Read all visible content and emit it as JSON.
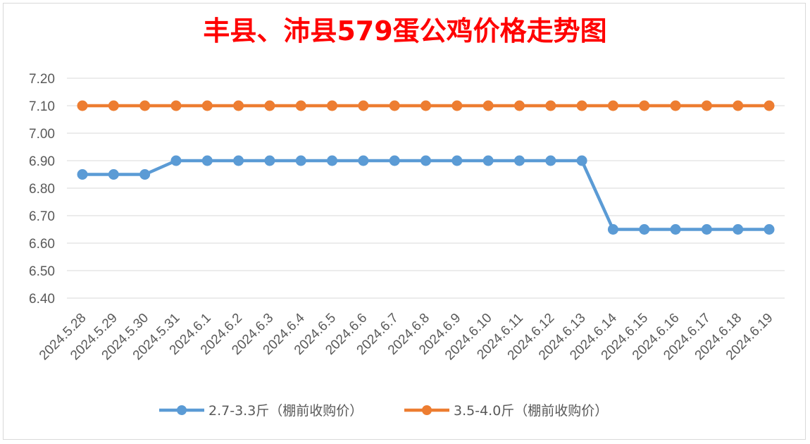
{
  "chart_data": {
    "type": "line",
    "title": "丰县、沛县579蛋公鸡价格走势图",
    "title_color": "#ff0000",
    "categories": [
      "2024.5.28",
      "2024.5.29",
      "2024.5.30",
      "2024.5.31",
      "2024.6.1",
      "2024.6.2",
      "2024.6.3",
      "2024.6.4",
      "2024.6.5",
      "2024.6.6",
      "2024.6.7",
      "2024.6.8",
      "2024.6.9",
      "2024.6.10",
      "2024.6.11",
      "2024.6.12",
      "2024.6.13",
      "2024.6.14",
      "2024.6.15",
      "2024.6.16",
      "2024.6.17",
      "2024.6.18",
      "2024.6.19"
    ],
    "series": [
      {
        "name": "2.7-3.3斤（棚前收购价）",
        "color": "#5b9bd5",
        "values": [
          6.85,
          6.85,
          6.85,
          6.9,
          6.9,
          6.9,
          6.9,
          6.9,
          6.9,
          6.9,
          6.9,
          6.9,
          6.9,
          6.9,
          6.9,
          6.9,
          6.9,
          6.65,
          6.65,
          6.65,
          6.65,
          6.65,
          6.65
        ]
      },
      {
        "name": "3.5-4.0斤（棚前收购价）",
        "color": "#ed7d31",
        "values": [
          7.1,
          7.1,
          7.1,
          7.1,
          7.1,
          7.1,
          7.1,
          7.1,
          7.1,
          7.1,
          7.1,
          7.1,
          7.1,
          7.1,
          7.1,
          7.1,
          7.1,
          7.1,
          7.1,
          7.1,
          7.1,
          7.1,
          7.1
        ]
      }
    ],
    "ylim": [
      6.4,
      7.2
    ],
    "yticks": [
      "6.40",
      "6.50",
      "6.60",
      "6.70",
      "6.80",
      "6.90",
      "7.00",
      "7.10",
      "7.20"
    ],
    "grid": true,
    "legend_position": "bottom",
    "xlabel": "",
    "ylabel": ""
  }
}
